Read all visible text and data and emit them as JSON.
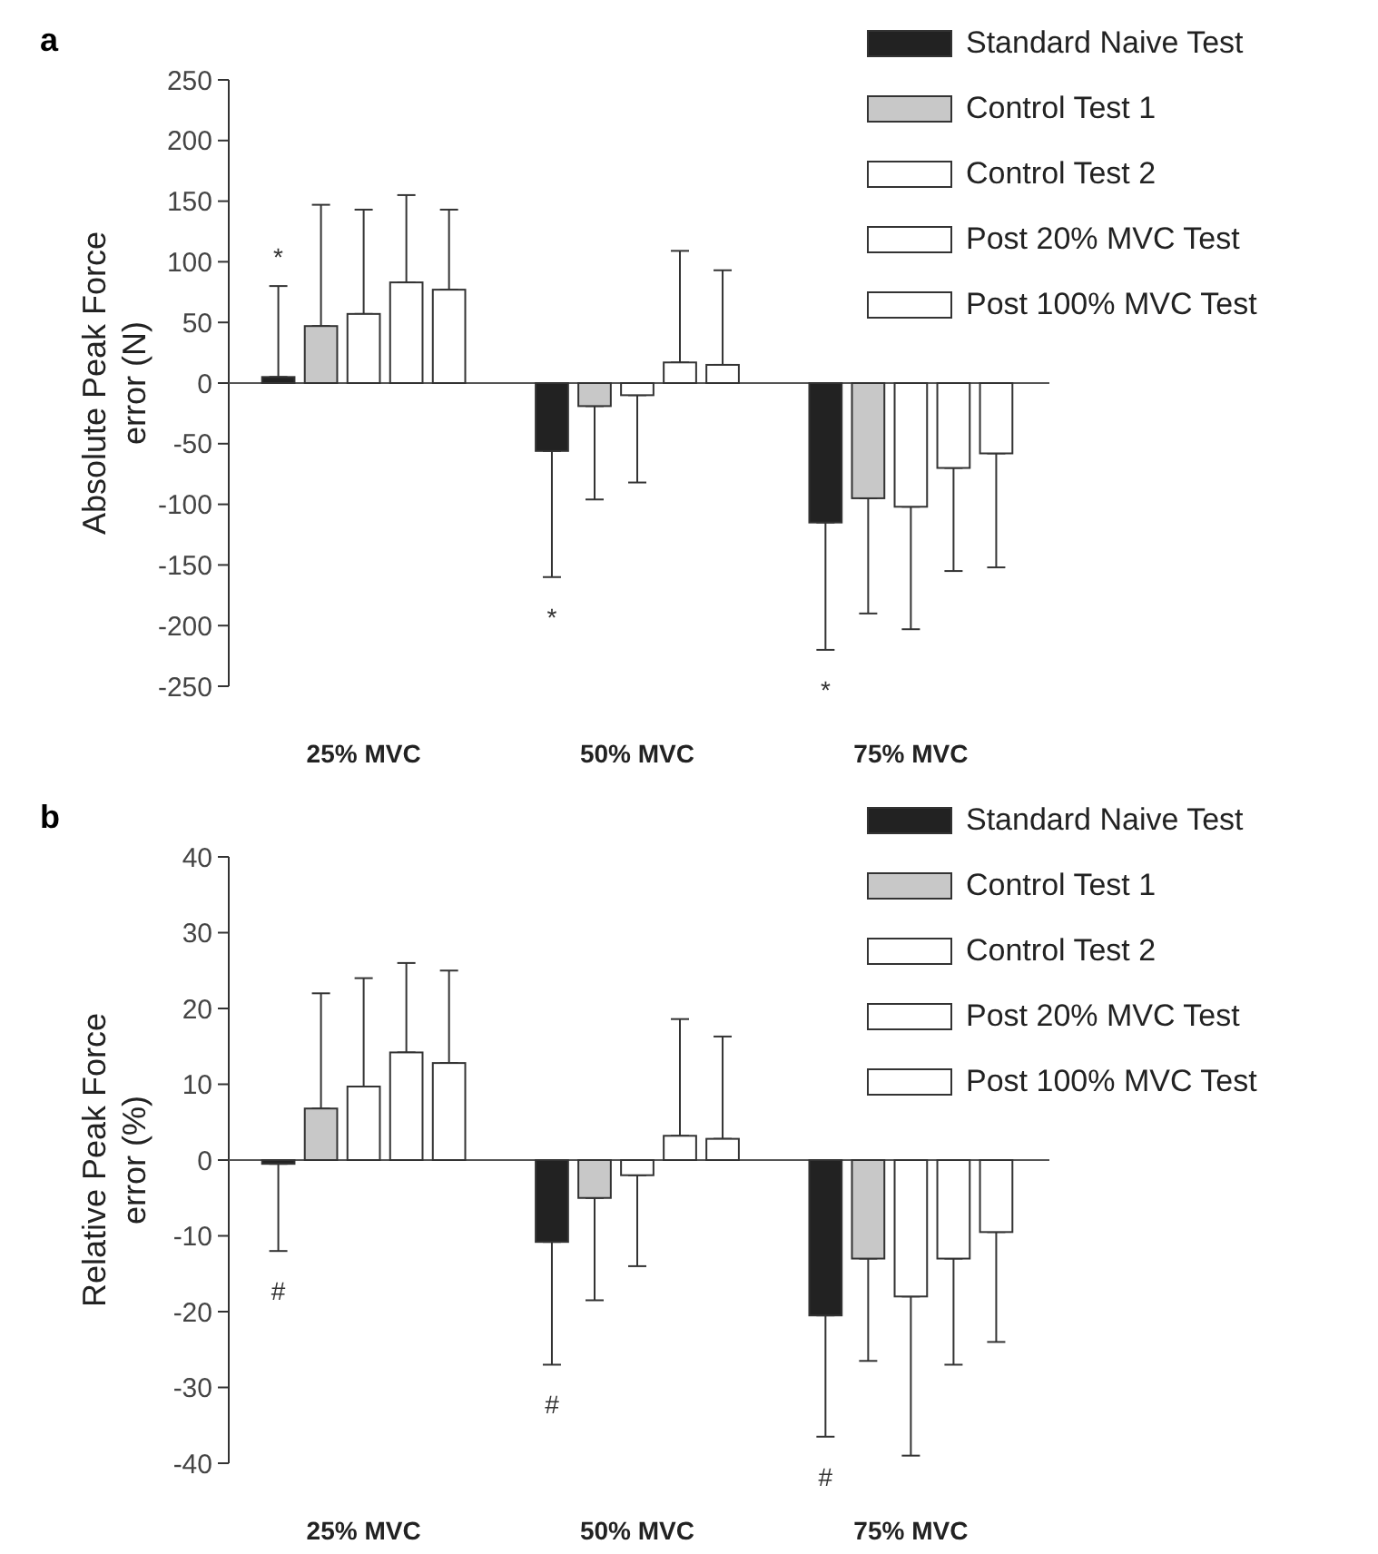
{
  "chart_data": [
    {
      "type": "bar",
      "title": "a",
      "ylabel": "Absolute Peak Force error (N)",
      "categories": [
        "25% MVC",
        "50% MVC",
        "75% MVC"
      ],
      "ylim": [
        -250,
        250
      ],
      "yticks": [
        -250,
        -200,
        -150,
        -100,
        -50,
        0,
        50,
        100,
        150,
        200,
        250
      ],
      "legend": "top right",
      "series": [
        {
          "name": "Standard Naive Test",
          "color": "#222222",
          "values": [
            5,
            -56,
            -115
          ],
          "errors": [
            [
              5,
              80
            ],
            [
              -160,
              -56
            ],
            [
              -220,
              -115
            ]
          ]
        },
        {
          "name": "Control Test 1",
          "color": "#c8c8c8",
          "values": [
            47,
            -19,
            -95
          ],
          "errors": [
            [
              47,
              147
            ],
            [
              -96,
              -19
            ],
            [
              -190,
              -95
            ]
          ]
        },
        {
          "name": "Control Test 2",
          "color": "#ffffff",
          "values": [
            57,
            -10,
            -102
          ],
          "errors": [
            [
              57,
              143
            ],
            [
              -82,
              -10
            ],
            [
              -203,
              -102
            ]
          ]
        },
        {
          "name": "Post 20% MVC Test",
          "color": "#ffffff",
          "values": [
            83,
            17,
            -70
          ],
          "errors": [
            [
              83,
              155
            ],
            [
              17,
              109
            ],
            [
              -155,
              -70
            ]
          ]
        },
        {
          "name": "Post 100% MVC Test",
          "color": "#ffffff",
          "values": [
            77,
            15,
            -58
          ],
          "errors": [
            [
              77,
              143
            ],
            [
              15,
              93
            ],
            [
              -152,
              -58
            ]
          ]
        }
      ],
      "annotations": [
        "*",
        "*",
        "*"
      ]
    },
    {
      "type": "bar",
      "title": "b",
      "ylabel": "Relative Peak Force error (%)",
      "categories": [
        "25% MVC",
        "50% MVC",
        "75% MVC"
      ],
      "ylim": [
        -40,
        40
      ],
      "yticks": [
        -40,
        -30,
        -20,
        -10,
        0,
        10,
        20,
        30,
        40
      ],
      "legend": "top right",
      "series": [
        {
          "name": "Standard Naive Test",
          "color": "#222222",
          "values": [
            -0.5,
            -10.8,
            -20.5
          ],
          "errors": [
            [
              -12,
              -0.5
            ],
            [
              -27,
              -10.8
            ],
            [
              -36.5,
              -20.5
            ]
          ]
        },
        {
          "name": "Control Test 1",
          "color": "#c8c8c8",
          "values": [
            6.8,
            -5,
            -13
          ],
          "errors": [
            [
              6.8,
              22
            ],
            [
              -18.5,
              -5
            ],
            [
              -26.5,
              -13
            ]
          ]
        },
        {
          "name": "Control Test 2",
          "color": "#ffffff",
          "values": [
            9.7,
            -2,
            -18
          ],
          "errors": [
            [
              9.7,
              24
            ],
            [
              -14,
              -2
            ],
            [
              -39,
              -18
            ]
          ]
        },
        {
          "name": "Post 20% MVC Test",
          "color": "#ffffff",
          "values": [
            14.2,
            3.2,
            -13
          ],
          "errors": [
            [
              14.2,
              26
            ],
            [
              3.2,
              18.6
            ],
            [
              -27,
              -13
            ]
          ]
        },
        {
          "name": "Post 100% MVC Test",
          "color": "#ffffff",
          "values": [
            12.8,
            2.8,
            -9.5
          ],
          "errors": [
            [
              12.8,
              25
            ],
            [
              2.8,
              16.3
            ],
            [
              -24,
              -9.5
            ]
          ]
        }
      ],
      "annotations": [
        "#",
        "#",
        "#"
      ]
    }
  ]
}
